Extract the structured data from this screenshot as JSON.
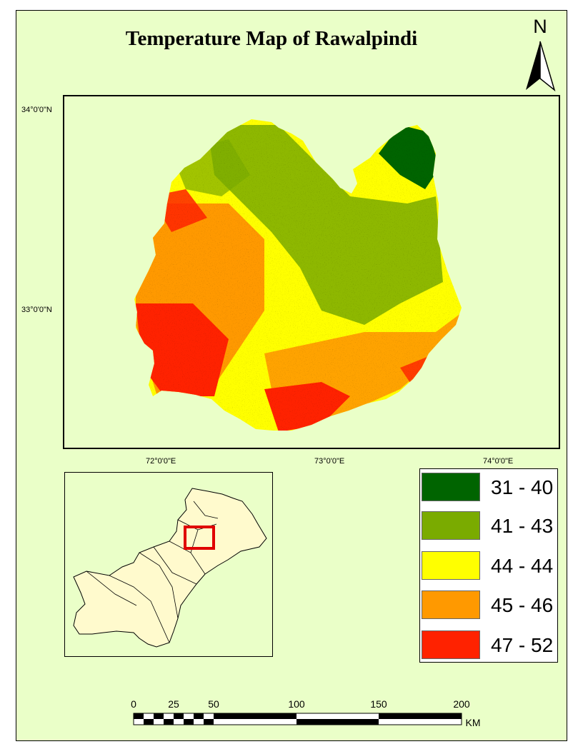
{
  "map": {
    "title": "Temperature Map of Rawalpindi",
    "north_label": "N",
    "latitude_labels": [
      "34°0'0\"N",
      "33°0'0\"N"
    ],
    "longitude_labels": [
      "72°0'0\"E",
      "73°0'0\"E",
      "74°0'0\"E"
    ],
    "colors": {
      "background": "#eaffc8",
      "class_31_40": "#006400",
      "class_41_43": "#7aab00",
      "class_44_44": "#ffff00",
      "class_45_46": "#ff9900",
      "class_47_52": "#ff2200",
      "inset_country": "#fffacd",
      "inset_highlight": "#e00000"
    }
  },
  "legend": {
    "items": [
      {
        "label": "31 - 40",
        "color": "#006400"
      },
      {
        "label": "41 - 43",
        "color": "#7aab00"
      },
      {
        "label": "44 - 44",
        "color": "#ffff00"
      },
      {
        "label": "45 - 46",
        "color": "#ff9900"
      },
      {
        "label": "47 - 52",
        "color": "#ff2200"
      }
    ]
  },
  "scale_bar": {
    "ticks": [
      "0",
      "25",
      "50",
      "100",
      "150",
      "200"
    ],
    "unit": "KM"
  }
}
